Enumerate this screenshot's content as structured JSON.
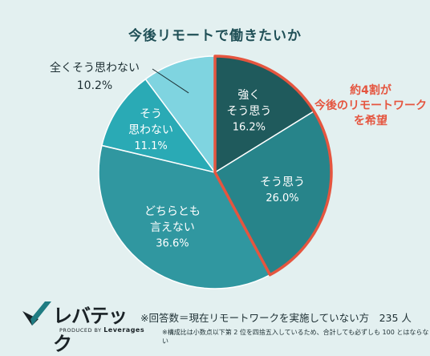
{
  "chart_data": {
    "type": "pie",
    "title": "今後リモートで働きたいか",
    "slices": [
      {
        "label": "強く\nそう思う",
        "value": 16.2,
        "display": "16.2%",
        "color": "#1f5a5c",
        "label_pos": "inside"
      },
      {
        "label": "そう思う",
        "value": 26.0,
        "display": "26.0%",
        "color": "#27848a",
        "label_pos": "inside"
      },
      {
        "label": "どちらとも\n言えない",
        "value": 36.6,
        "display": "36.6%",
        "color": "#3097a0",
        "label_pos": "inside"
      },
      {
        "label": "そう\n思わない",
        "value": 11.1,
        "display": "11.1%",
        "color": "#2aaab5",
        "label_pos": "inside"
      },
      {
        "label": "全くそう思わない",
        "value": 10.2,
        "display": "10.2%",
        "color": "#7fd4e0",
        "label_pos": "outside"
      }
    ],
    "highlight": {
      "slices": [
        0,
        1
      ],
      "color": "#e5553f",
      "text": "約4割が\n今後のリモートワーク\nを希望"
    }
  },
  "footer": {
    "note": "※回答数＝現在リモートワークを実施していない方　235 人",
    "small": "※構成比は小数点以下第 2 位を四捨五入しているため、合計しても必ずしも 100 とはならない"
  },
  "logo": {
    "name": "レバテック",
    "sub_prefix": "PRODUCED BY",
    "sub_brand": "Leverages"
  }
}
